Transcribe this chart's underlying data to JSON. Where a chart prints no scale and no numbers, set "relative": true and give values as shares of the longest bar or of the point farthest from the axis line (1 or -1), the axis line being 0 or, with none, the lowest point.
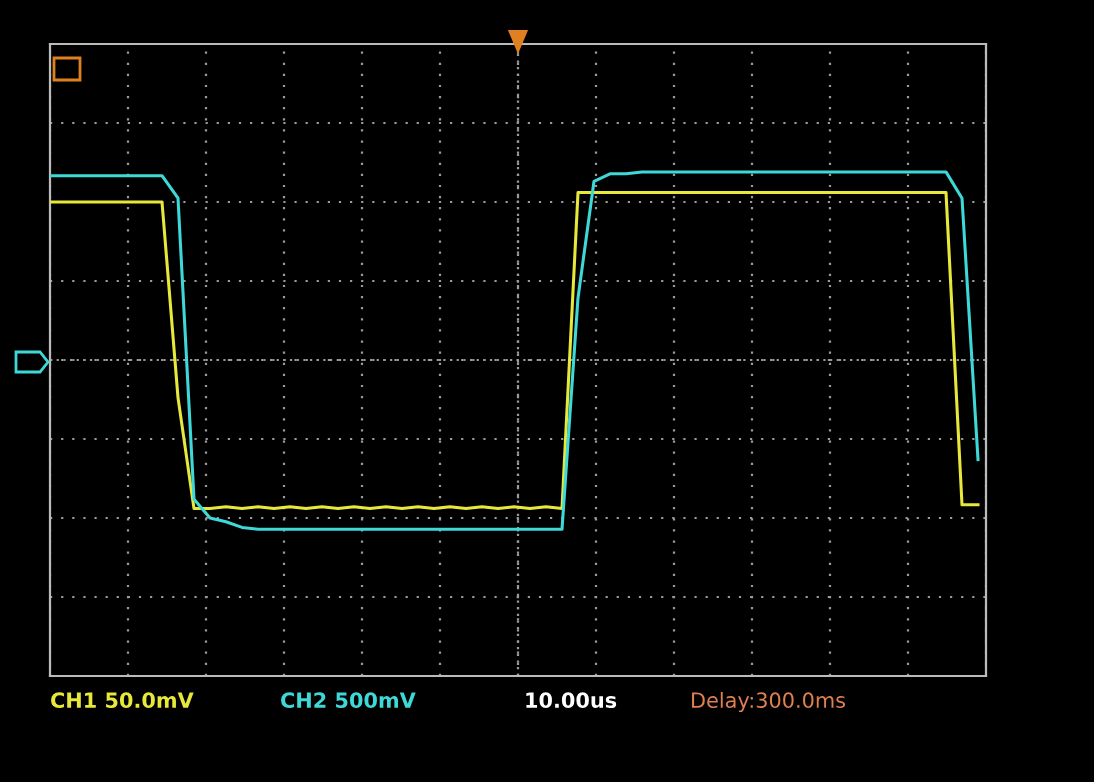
{
  "chart_data": {
    "type": "line",
    "relative": true,
    "grid": true,
    "tick_labels": false,
    "legend": false,
    "marker": "none",
    "line_style": "solid",
    "categories": [
      null,
      null,
      null,
      null,
      null,
      null,
      null,
      null,
      null,
      null,
      null,
      null,
      null,
      null,
      null,
      null,
      null,
      null,
      null,
      null,
      null,
      null,
      null,
      null,
      null,
      null,
      null,
      null,
      null,
      null,
      null,
      null,
      null,
      null,
      null,
      null,
      null,
      null,
      null,
      null,
      null,
      null,
      null,
      null,
      null,
      null,
      null,
      null,
      null,
      null,
      null,
      null,
      null,
      null,
      null,
      null,
      null,
      null,
      null
    ],
    "series": [
      {
        "color": "#e8e83a",
        "values": [
          0.84,
          0.84,
          0.84,
          0.84,
          0.84,
          0.84,
          0.84,
          0.84,
          -0.2,
          -0.79,
          -0.79,
          -0.78,
          -0.79,
          -0.78,
          -0.79,
          -0.78,
          -0.79,
          -0.78,
          -0.79,
          -0.78,
          -0.79,
          -0.78,
          -0.79,
          -0.78,
          -0.79,
          -0.78,
          -0.79,
          -0.78,
          -0.79,
          -0.78,
          -0.79,
          -0.78,
          -0.79,
          0.89,
          0.89,
          0.89,
          0.89,
          0.89,
          0.89,
          0.89,
          0.89,
          0.89,
          0.89,
          0.89,
          0.89,
          0.89,
          0.89,
          0.89,
          0.89,
          0.89,
          0.89,
          0.89,
          0.89,
          0.89,
          0.89,
          0.89,
          0.89,
          -0.77,
          -0.77
        ]
      },
      {
        "color": "#3fd8d8",
        "values": [
          0.98,
          0.98,
          0.98,
          0.98,
          0.98,
          0.98,
          0.98,
          0.98,
          0.86,
          -0.74,
          -0.84,
          -0.86,
          -0.89,
          -0.9,
          -0.9,
          -0.9,
          -0.9,
          -0.9,
          -0.9,
          -0.9,
          -0.9,
          -0.9,
          -0.9,
          -0.9,
          -0.9,
          -0.9,
          -0.9,
          -0.9,
          -0.9,
          -0.9,
          -0.9,
          -0.9,
          -0.9,
          0.33,
          0.95,
          0.99,
          0.99,
          1.0,
          1.0,
          1.0,
          1.0,
          1.0,
          1.0,
          1.0,
          1.0,
          1.0,
          1.0,
          1.0,
          1.0,
          1.0,
          1.0,
          1.0,
          1.0,
          1.0,
          1.0,
          1.0,
          1.0,
          0.86,
          -0.53
        ]
      }
    ],
    "annotations": [
      "CH1 50.0mV",
      "CH2 500mV",
      "10.00us",
      "Delay:300.0ms"
    ]
  }
}
